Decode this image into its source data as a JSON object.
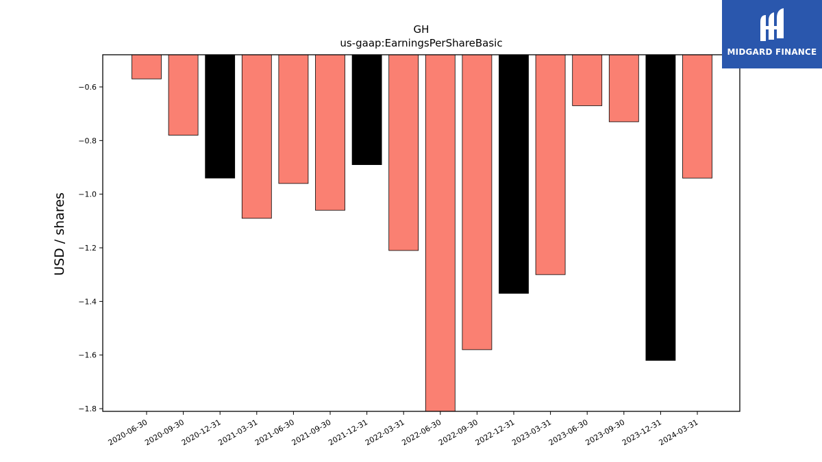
{
  "chart_data": {
    "type": "bar",
    "title": "GH",
    "subtitle": "us-gaap:EarningsPerShareBasic",
    "xlabel": "",
    "ylabel": "USD / shares",
    "categories": [
      "2020-06-30",
      "2020-09-30",
      "2020-12-31",
      "2021-03-31",
      "2021-06-30",
      "2021-09-30",
      "2021-12-31",
      "2022-03-31",
      "2022-06-30",
      "2022-09-30",
      "2022-12-31",
      "2023-03-31",
      "2023-06-30",
      "2023-09-30",
      "2023-12-31",
      "2024-03-31"
    ],
    "values": [
      -0.57,
      -0.78,
      -0.94,
      -1.09,
      -0.96,
      -1.06,
      -0.89,
      -1.21,
      -1.81,
      -1.58,
      -1.37,
      -1.3,
      -0.67,
      -0.73,
      -1.62,
      -0.94
    ],
    "bar_colors": [
      "#fa8072",
      "#fa8072",
      "#000000",
      "#fa8072",
      "#fa8072",
      "#fa8072",
      "#000000",
      "#fa8072",
      "#fa8072",
      "#fa8072",
      "#000000",
      "#fa8072",
      "#fa8072",
      "#fa8072",
      "#000000",
      "#fa8072"
    ],
    "ylim": [
      -1.81,
      -0.48
    ],
    "yticks": [
      -0.6,
      -0.8,
      -1.0,
      -1.2,
      -1.4,
      -1.6,
      -1.8
    ],
    "ytick_labels": [
      "−0.6",
      "−0.8",
      "−1.0",
      "−1.2",
      "−1.4",
      "−1.6",
      "−1.8"
    ],
    "grid": false,
    "legend": "none"
  },
  "logo": {
    "text": "MIDGARD FINANCE",
    "color": "#2a57ad",
    "icon": "midgard-logo-icon"
  }
}
